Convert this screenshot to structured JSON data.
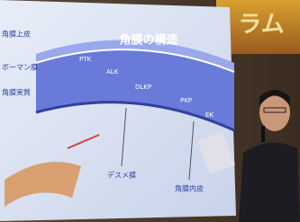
{
  "banner": {
    "text": "ラム"
  },
  "slide": {
    "title": "角膜の構造",
    "left_labels": [
      "角膜上皮",
      "ボーマン膜",
      "角膜実質"
    ],
    "layer_labels": [
      "PTK",
      "ALK",
      "DLKP",
      "PKP",
      "EK"
    ],
    "bottom_labels": [
      "デスメ膜",
      "角膜内皮"
    ]
  }
}
